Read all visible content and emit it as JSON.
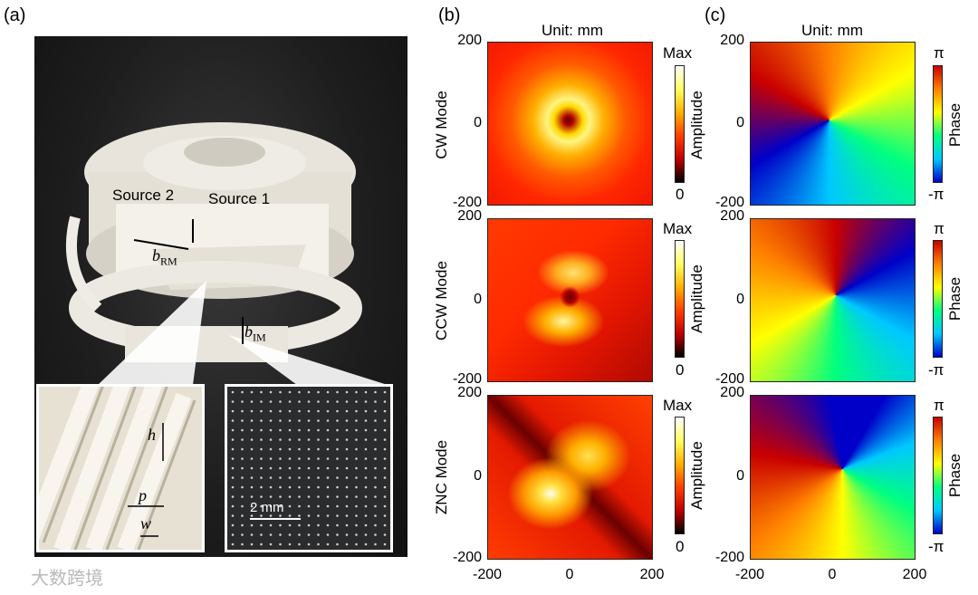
{
  "panels": {
    "a": "(a)",
    "b": "(b)",
    "c": "(c)"
  },
  "unit_label": "Unit: mm",
  "modes": [
    "CW Mode",
    "CCW Mode",
    "ZNC Mode"
  ],
  "amplitude_colorbar": {
    "top": "Max",
    "bottom": "0",
    "title": "Amplitude"
  },
  "phase_colorbar": {
    "top": "π",
    "bottom": "-π",
    "title": "Phase"
  },
  "ticks": {
    "y_top": "200",
    "y_mid": "0",
    "y_bot": "-200",
    "x": [
      "-200",
      "0",
      "200"
    ]
  },
  "photo": {
    "source1": "Source 1",
    "source2": "Source 2",
    "b_rm": "b",
    "b_rm_sub": "RM",
    "b_im": "b",
    "b_im_sub": "IM",
    "h": "h",
    "p": "p",
    "w": "w",
    "scale": "2 mm"
  },
  "watermark": "大数跨境",
  "colors": {
    "amp_low": "#000000",
    "amp_mid": "#e5201c",
    "amp_high": "#ffffff",
    "phase": [
      "#0000c8",
      "#00c8ff",
      "#00ff80",
      "#ffff00",
      "#ff8000",
      "#c80000"
    ]
  }
}
